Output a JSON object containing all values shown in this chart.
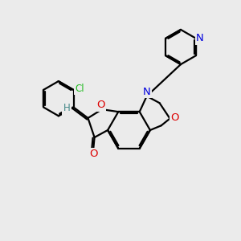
{
  "bg_color": "#ebebeb",
  "bond_color": "#000000",
  "bond_width": 1.6,
  "atom_colors": {
    "N": "#0000dd",
    "O": "#dd0000",
    "Cl": "#22bb22",
    "H": "#448888"
  },
  "font_size": 9.0,
  "xlim": [
    0,
    10
  ],
  "ylim": [
    0,
    10
  ]
}
